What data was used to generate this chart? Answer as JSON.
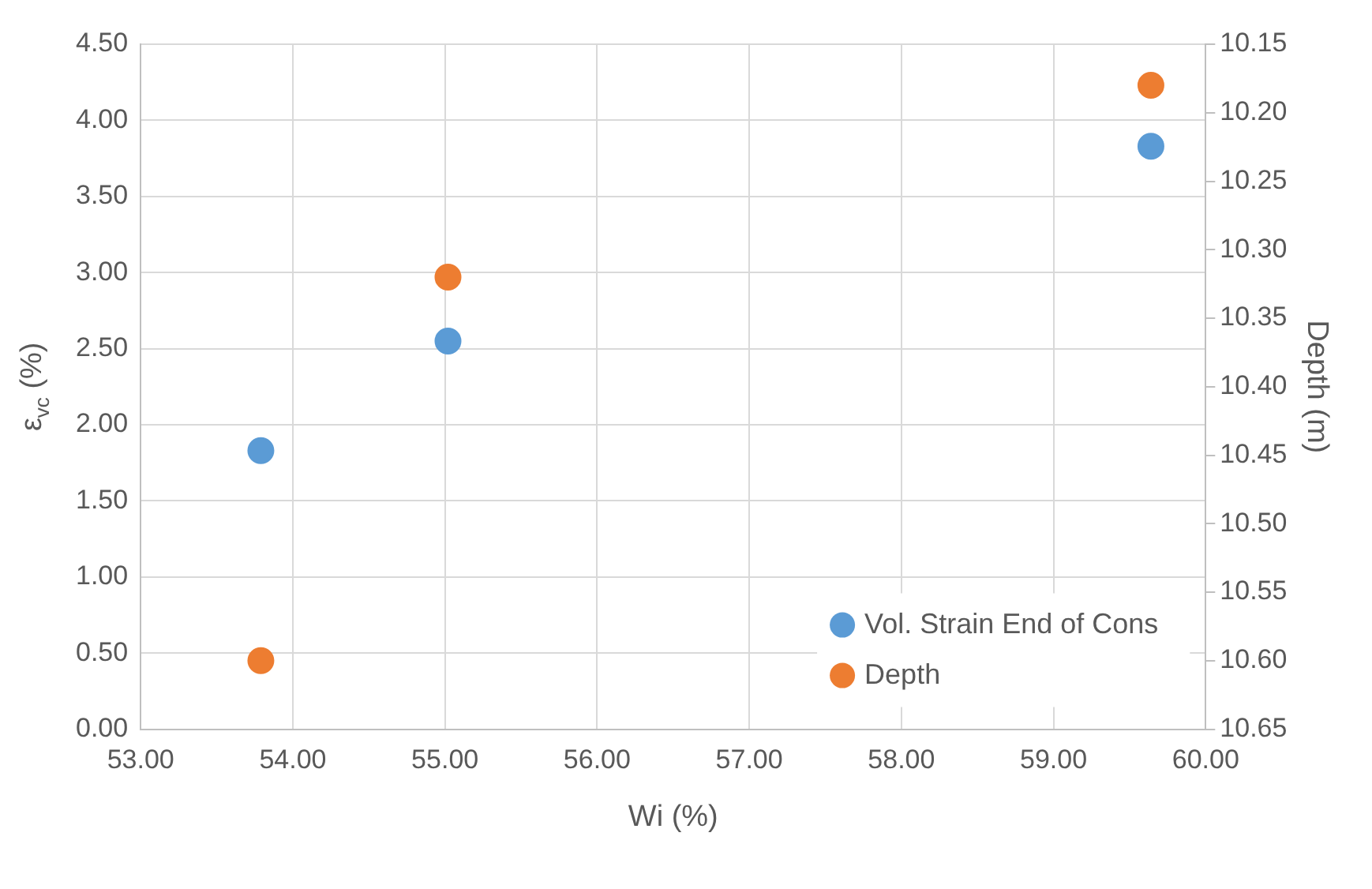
{
  "chart_data": {
    "type": "scatter",
    "xlabel": "Wi (%)",
    "ylabel": "ε$_{vc}$ (%)",
    "y2label": "Depth (m)",
    "series": [
      {
        "name": "Vol. Strain End of Cons",
        "color": "#5b9bd5",
        "x": [
          53.79,
          55.02,
          59.64
        ],
        "values": [
          1.83,
          2.55,
          3.83
        ]
      },
      {
        "name": "Depth",
        "color": "#ed7d31",
        "axis": "y2",
        "x": [
          53.79,
          55.02,
          59.64
        ],
        "values": [
          10.6,
          10.32,
          10.18
        ]
      }
    ],
    "xlim": [
      53,
      60
    ],
    "xticks": [
      {
        "value": 53,
        "label": "53.00"
      },
      {
        "value": 54,
        "label": "54.00"
      },
      {
        "value": 55,
        "label": "55.00"
      },
      {
        "value": 56,
        "label": "56.00"
      },
      {
        "value": 57,
        "label": "57.00"
      },
      {
        "value": 58,
        "label": "58.00"
      },
      {
        "value": 59,
        "label": "59.00"
      },
      {
        "value": 60,
        "label": "60.00"
      }
    ],
    "ylim": [
      0,
      4.5
    ],
    "yticks": [
      {
        "value": 0,
        "label": "0.00"
      },
      {
        "value": 0.5,
        "label": "0.50"
      },
      {
        "value": 1,
        "label": "1.00"
      },
      {
        "value": 1.5,
        "label": "1.50"
      },
      {
        "value": 2,
        "label": "2.00"
      },
      {
        "value": 2.5,
        "label": "2.50"
      },
      {
        "value": 3,
        "label": "3.00"
      },
      {
        "value": 3.5,
        "label": "3.50"
      },
      {
        "value": 4,
        "label": "4.00"
      },
      {
        "value": 4.5,
        "label": "4.50"
      }
    ],
    "y2lim": [
      10.65,
      10.15
    ],
    "y2ticks": [
      {
        "value": 10.15,
        "label": "10.15"
      },
      {
        "value": 10.2,
        "label": "10.20"
      },
      {
        "value": 10.25,
        "label": "10.25"
      },
      {
        "value": 10.3,
        "label": "10.30"
      },
      {
        "value": 10.35,
        "label": "10.35"
      },
      {
        "value": 10.4,
        "label": "10.40"
      },
      {
        "value": 10.45,
        "label": "10.45"
      },
      {
        "value": 10.5,
        "label": "10.50"
      },
      {
        "value": 10.55,
        "label": "10.55"
      },
      {
        "value": 10.6,
        "label": "10.60"
      },
      {
        "value": 10.65,
        "label": "10.65"
      }
    ],
    "grid": true,
    "legend": "bottom right",
    "marker": "circle"
  }
}
